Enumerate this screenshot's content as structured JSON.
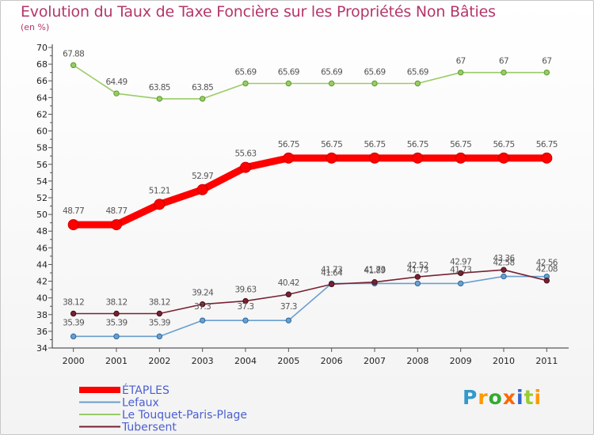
{
  "chart_data": {
    "type": "line",
    "title": "Evolution du Taux de Taxe Foncière sur les Propriétés Non Bâties",
    "unit_label": "(en %)",
    "x": [
      "2000",
      "2001",
      "2002",
      "2003",
      "2004",
      "2005",
      "2006",
      "2007",
      "2008",
      "2009",
      "2010",
      "2011"
    ],
    "ylim": [
      34,
      70
    ],
    "ytick_step": 2,
    "yticks": [
      "34",
      "36",
      "38",
      "40",
      "42",
      "44",
      "46",
      "48",
      "50",
      "52",
      "54",
      "56",
      "58",
      "60",
      "62",
      "64",
      "66",
      "68",
      "70"
    ],
    "series": [
      {
        "name": "ÉTAPLES",
        "color": "#ff0000",
        "values": [
          48.77,
          48.77,
          51.21,
          52.97,
          55.63,
          56.75,
          56.75,
          56.75,
          56.75,
          56.75,
          56.75,
          56.75
        ],
        "labels": [
          "48.77",
          "48.77",
          "51.21",
          "52.97",
          "55.63",
          "56.75",
          "56.75",
          "56.75",
          "56.75",
          "56.75",
          "56.75",
          "56.75"
        ]
      },
      {
        "name": "Lefaux",
        "color": "#6a9fd0",
        "values": [
          35.39,
          35.39,
          35.39,
          37.3,
          37.3,
          37.3,
          41.73,
          41.73,
          41.73,
          41.73,
          42.58,
          42.56
        ],
        "labels": [
          "35.39",
          "35.39",
          "35.39",
          "37.3",
          "37.3",
          "37.3",
          "41.73",
          "41.73",
          "41.73",
          "41.73",
          "42.58",
          "42.56"
        ]
      },
      {
        "name": "Le Touquet-Paris-Plage",
        "color": "#99cc66",
        "values": [
          67.88,
          64.49,
          63.85,
          63.85,
          65.69,
          65.69,
          65.69,
          65.69,
          65.69,
          67,
          67,
          67
        ],
        "labels": [
          "67.88",
          "64.49",
          "63.85",
          "63.85",
          "65.69",
          "65.69",
          "65.69",
          "65.69",
          "65.69",
          "67",
          "67",
          "67"
        ]
      },
      {
        "name": "Tubersent",
        "color": "#772233",
        "values": [
          38.12,
          38.12,
          38.12,
          39.24,
          39.63,
          40.42,
          41.64,
          41.89,
          42.52,
          42.97,
          43.36,
          42.08
        ],
        "labels": [
          "38.12",
          "38.12",
          "38.12",
          "39.24",
          "39.63",
          "40.42",
          "41.64",
          "41.89",
          "42.52",
          "42.97",
          "43.36",
          "42.08"
        ]
      }
    ],
    "legend_position": "bottom-left"
  },
  "logo": {
    "text": "Proxiti",
    "letters": [
      "P",
      "r",
      "o",
      "x",
      "i",
      "t",
      "i"
    ],
    "colors": [
      "#3399cc",
      "#ff9900",
      "#33aa33",
      "#ff6600",
      "#3366cc",
      "#99cc33",
      "#ff9900"
    ]
  }
}
